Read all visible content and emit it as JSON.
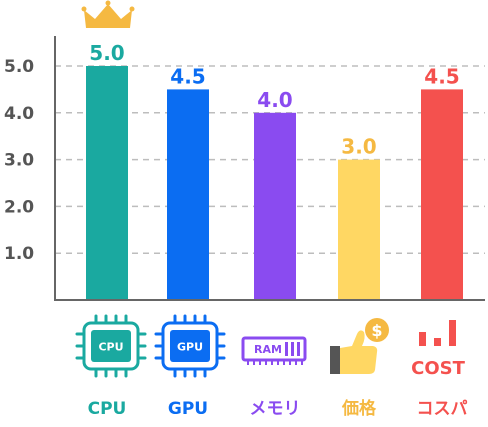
{
  "chart_data": {
    "type": "bar",
    "categories": [
      "CPU",
      "GPU",
      "メモリ",
      "価格",
      "コスパ"
    ],
    "values": [
      5.0,
      4.5,
      4.0,
      3.0,
      4.5
    ],
    "value_labels": [
      "5.0",
      "4.5",
      "4.0",
      "3.0",
      "4.5"
    ],
    "colors": [
      "#1aa9a0",
      "#0b6df2",
      "#8a4bf0",
      "#ffd763",
      "#f4514e"
    ],
    "label_colors": [
      "#1aa9a0",
      "#0b6df2",
      "#8a4bf0",
      "#f5b942",
      "#f4514e"
    ],
    "y_ticks": [
      "1.0",
      "2.0",
      "3.0",
      "4.0",
      "5.0"
    ],
    "ylim": [
      0,
      5.5
    ],
    "grid": true,
    "title": "",
    "xlabel": "",
    "ylabel": "",
    "icons": [
      "cpu-chip-icon",
      "gpu-chip-icon",
      "ram-module-icon",
      "price-thumbs-up-coin-icon",
      "cost-bars-icon"
    ],
    "icon_text": {
      "cpu": "CPU",
      "gpu": "GPU",
      "ram": "RAM",
      "coin": "$",
      "cost": "COST"
    },
    "crown_icon": "crown-icon",
    "crown_color": "#f5b942"
  }
}
